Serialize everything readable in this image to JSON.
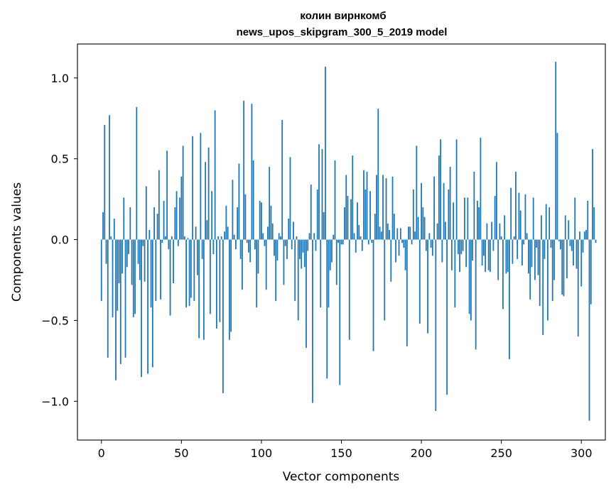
{
  "chart_data": {
    "type": "bar",
    "title_line1": "колин вирнкомб",
    "title_line2": "news_upos_skipgram_300_5_2019 model",
    "xlabel": "Vector components",
    "ylabel": "Components values",
    "xlim": [
      -15,
      315
    ],
    "ylim": [
      -1.24,
      1.21
    ],
    "x_ticks": [
      0,
      50,
      100,
      150,
      200,
      250,
      300
    ],
    "y_ticks": [
      1.0,
      0.5,
      0.0,
      -0.5,
      -1.0
    ],
    "x_tick_labels": [
      "0",
      "50",
      "100",
      "150",
      "200",
      "250",
      "300"
    ],
    "y_tick_labels": [
      "1.0",
      "0.5",
      "0.0",
      "−0.5",
      "−1.0"
    ],
    "bar_color": "#1f77b4",
    "grid": false,
    "values": [
      -0.38,
      0.17,
      0.71,
      -0.15,
      -0.73,
      0.77,
      0.02,
      -0.48,
      0.13,
      -0.87,
      -0.44,
      -0.27,
      -0.77,
      -0.21,
      0.26,
      -0.73,
      -0.17,
      -0.09,
      0.2,
      -0.28,
      -0.48,
      -0.46,
      0.82,
      -0.15,
      -0.25,
      -0.85,
      -0.04,
      -0.26,
      0.33,
      -0.83,
      0.06,
      -0.42,
      -0.79,
      0.2,
      -0.38,
      0.16,
      0.43,
      -0.37,
      -0.02,
      0.24,
      0.02,
      0.55,
      -0.06,
      -0.47,
      0.02,
      -0.27,
      0.2,
      0.3,
      -0.04,
      0.26,
      0.39,
      0.58,
      0.02,
      -0.42,
      0.01,
      -0.41,
      -0.36,
      0.64,
      -0.38,
      0.08,
      -0.22,
      -0.61,
      0.66,
      -0.12,
      -0.62,
      0.48,
      0.12,
      0.57,
      -0.46,
      0.3,
      -0.09,
      0.8,
      -0.55,
      0.02,
      -0.51,
      0.02,
      -0.95,
      0.05,
      0.21,
      0.08,
      -0.62,
      -0.57,
      0.37,
      0.03,
      -0.06,
      0.2,
      0.47,
      -0.12,
      -0.31,
      0.86,
      0.28,
      -0.02,
      -0.08,
      -0.14,
      0.84,
      0.49,
      -0.06,
      -0.42,
      -0.21,
      0.24,
      0.23,
      0.04,
      -0.04,
      -0.31,
      0.08,
      0.45,
      0.21,
      0.1,
      -0.1,
      -0.38,
      -0.13,
      0.04,
      0.02,
      0.74,
      -0.28,
      -0.04,
      -0.12,
      0.13,
      0.51,
      -0.06,
      0.11,
      -0.38,
      0.02,
      -0.5,
      -0.12,
      -0.18,
      -0.08,
      -0.17,
      -0.67,
      -0.07,
      0.04,
      0.34,
      -1.01,
      0.04,
      -0.07,
      0.31,
      0.59,
      -0.42,
      0.56,
      0.17,
      1.07,
      -0.86,
      -0.42,
      -0.19,
      -0.14,
      0.03,
      0.49,
      -0.28,
      -0.02,
      -0.9,
      -0.03,
      -0.03,
      0.2,
      0.4,
      0.27,
      -0.62,
      0.25,
      0.52,
      0.04,
      -0.08,
      0.23,
      0.09,
      0.02,
      -0.07,
      0.43,
      0.31,
      0.42,
      -0.03,
      0.3,
      -0.02,
      -0.69,
      0.16,
      0.4,
      0.81,
      0.08,
      0.05,
      0.4,
      -0.5,
      0.38,
      0.1,
      0.06,
      -0.26,
      0.39,
      0.16,
      -0.14,
      0.07,
      -0.1,
      0.07,
      -0.02,
      -0.05,
      -0.19,
      -0.66,
      0.08,
      0.08,
      -0.03,
      0.31,
      0.05,
      0.58,
      0.14,
      -0.52,
      0.35,
      0.2,
      0.14,
      -0.07,
      -0.58,
      0.04,
      -0.05,
      -0.1,
      0.39,
      -1.06,
      0.1,
      0.52,
      0.62,
      -0.14,
      0.35,
      0.11,
      -0.96,
      0.31,
      0.45,
      -0.19,
      0.23,
      -0.42,
      0.62,
      -0.09,
      -0.2,
      -0.09,
      -0.07,
      0.26,
      -0.17,
      0.26,
      -0.46,
      -0.5,
      -0.13,
      0.42,
      -0.68,
      0.24,
      0.2,
      0.63,
      -0.16,
      -0.1,
      -0.2,
      0.1,
      -0.19,
      -0.2,
      0.11,
      -0.07,
      0.27,
      0.48,
      -0.25,
      0.1,
      0.02,
      -0.43,
      0.15,
      -0.21,
      -0.2,
      -0.74,
      0.32,
      -0.15,
      0.02,
      0.42,
      -0.12,
      0.29,
      0.18,
      -0.16,
      -0.03,
      0.28,
      0.04,
      -0.21,
      -0.37,
      -0.17,
      0.26,
      -0.25,
      -0.05,
      -0.22,
      -0.41,
      0.15,
      -0.59,
      -0.12,
      0.22,
      -0.5,
      0.2,
      -0.05,
      -0.38,
      -0.25,
      1.1,
      0.66,
      -0.01,
      -0.06,
      -0.34,
      -0.35,
      0.15,
      -0.24,
      0.12,
      -0.04,
      -0.07,
      -0.16,
      0.26,
      -0.18,
      -0.6,
      0.05,
      -0.29,
      -0.08,
      0.05,
      0.06,
      0.24,
      -1.12,
      -0.4,
      0.56,
      0.2,
      -0.02
    ]
  }
}
